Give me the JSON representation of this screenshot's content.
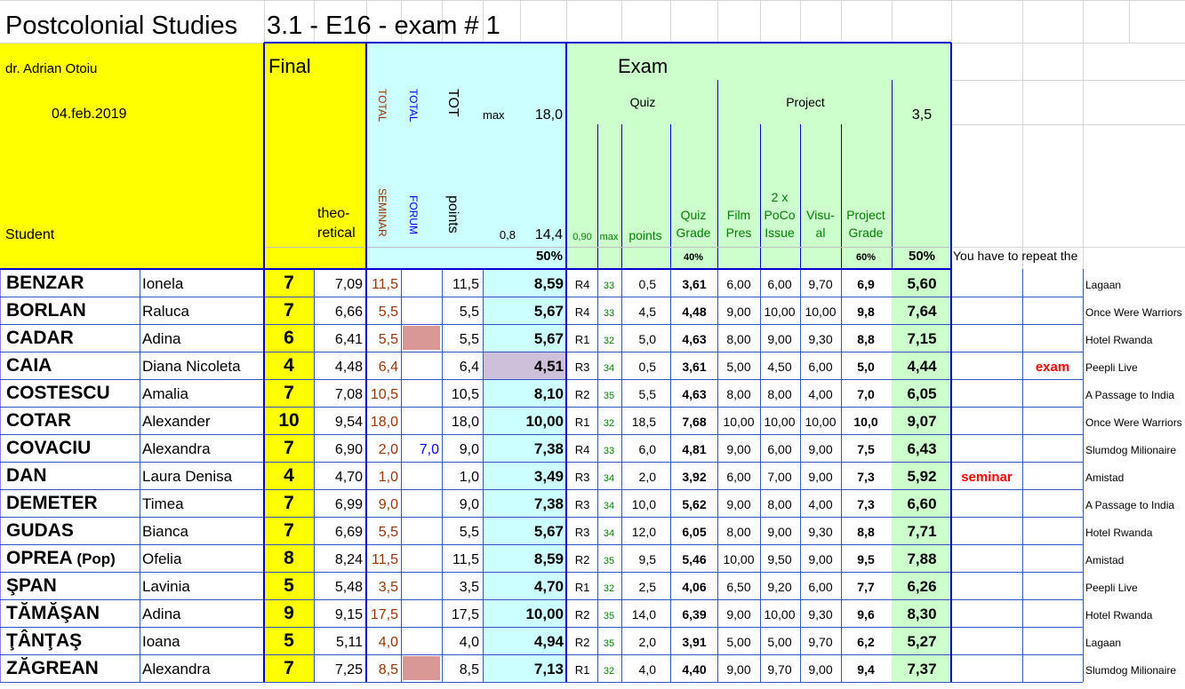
{
  "sheet": {
    "title": "Postcolonial Studies",
    "course": "3.1 - E16 - exam # 1",
    "teacher": "dr. Adrian Otoiu",
    "date": "04.feb.2019",
    "student_label": "Student",
    "final_label": "Final",
    "theoretical_label_1": "theo-",
    "theoretical_label_2": "retical",
    "total_seminar_top": "TOTAL",
    "total_seminar_bottom": "SEMINAR",
    "total_forum_top": "TOTAL",
    "total_forum_bottom": "FORUM",
    "tot_points_top": "TOT",
    "tot_points_bottom": "points",
    "max_label": "max",
    "max_value": "18,0",
    "factor": "0,8",
    "pass_points": "14,4",
    "points_weight": "50%",
    "exam_label": "Exam",
    "quiz_label": "Quiz",
    "project_label": "Project",
    "exam_score_top": "3,5",
    "quiz_factor": "0,90",
    "max_short": "max",
    "points_label": "points",
    "quiz_grade_1": "Quiz",
    "quiz_grade_2": "Grade",
    "quiz_weight": "40%",
    "film_1": "Film",
    "film_2": "Pres",
    "poco_0": "2 x",
    "poco_1": "PoCo",
    "poco_2": "Issue",
    "visual_1": "Visu-",
    "visual_2": "al",
    "project_grade_1": "Project",
    "project_grade_2": "Grade",
    "project_weight": "60%",
    "exam_weight": "50%",
    "repeat_note": "You have to repeat the"
  },
  "rows": [
    {
      "surname": "BENZAR",
      "name": "Ionela",
      "final": "7",
      "theo": "7,09",
      "seminar": "11,5",
      "forum": "",
      "forum_flag": false,
      "tot": "11,5",
      "points": "8,59",
      "points_flag": false,
      "quiz_id": "R4",
      "quiz_max": "33",
      "quiz_points": "0,5",
      "quiz_grade": "3,61",
      "film": "6,00",
      "poco": "6,00",
      "visual": "9,70",
      "project": "6,9",
      "exam": "5,60",
      "repeat": "",
      "movie": "Lagaan"
    },
    {
      "surname": "BORLAN",
      "name": "Raluca",
      "final": "7",
      "theo": "6,66",
      "seminar": "5,5",
      "forum": "",
      "forum_flag": false,
      "tot": "5,5",
      "points": "5,67",
      "points_flag": false,
      "quiz_id": "R4",
      "quiz_max": "33",
      "quiz_points": "4,5",
      "quiz_grade": "4,48",
      "film": "9,00",
      "poco": "10,00",
      "visual": "10,00",
      "project": "9,8",
      "exam": "7,64",
      "repeat": "",
      "movie": "Once Were Warriors"
    },
    {
      "surname": "CADAR",
      "name": "Adina",
      "final": "6",
      "theo": "6,41",
      "seminar": "5,5",
      "forum": "",
      "forum_flag": true,
      "tot": "5,5",
      "points": "5,67",
      "points_flag": false,
      "quiz_id": "R1",
      "quiz_max": "32",
      "quiz_points": "5,0",
      "quiz_grade": "4,63",
      "film": "8,00",
      "poco": "9,00",
      "visual": "9,30",
      "project": "8,8",
      "exam": "7,15",
      "repeat": "",
      "movie": "Hotel Rwanda"
    },
    {
      "surname": "CAIA",
      "name": "Diana Nicoleta",
      "final": "4",
      "theo": "4,48",
      "seminar": "6,4",
      "forum": "",
      "forum_flag": false,
      "tot": "6,4",
      "points": "4,51",
      "points_flag": true,
      "quiz_id": "R3",
      "quiz_max": "34",
      "quiz_points": "0,5",
      "quiz_grade": "3,61",
      "film": "5,00",
      "poco": "4,50",
      "visual": "6,00",
      "project": "5,0",
      "exam": "4,44",
      "repeat": "exam",
      "movie": "Peepli Live"
    },
    {
      "surname": "COSTESCU",
      "name": "Amalia",
      "final": "7",
      "theo": "7,08",
      "seminar": "10,5",
      "forum": "",
      "forum_flag": false,
      "tot": "10,5",
      "points": "8,10",
      "points_flag": false,
      "quiz_id": "R2",
      "quiz_max": "35",
      "quiz_points": "5,5",
      "quiz_grade": "4,63",
      "film": "8,00",
      "poco": "8,00",
      "visual": "4,00",
      "project": "7,0",
      "exam": "6,05",
      "repeat": "",
      "movie": "A Passage to India"
    },
    {
      "surname": "COTAR",
      "name": "Alexander",
      "final": "10",
      "theo": "9,54",
      "seminar": "18,0",
      "forum": "",
      "forum_flag": false,
      "tot": "18,0",
      "points": "10,00",
      "points_flag": false,
      "quiz_id": "R1",
      "quiz_max": "32",
      "quiz_points": "18,5",
      "quiz_grade": "7,68",
      "film": "10,00",
      "poco": "10,00",
      "visual": "10,00",
      "project": "10,0",
      "exam": "9,07",
      "repeat": "",
      "movie": "Once Were Warriors"
    },
    {
      "surname": "COVACIU",
      "name": "Alexandra",
      "final": "7",
      "theo": "6,90",
      "seminar": "2,0",
      "forum": "7,0",
      "forum_flag": false,
      "tot": "9,0",
      "points": "7,38",
      "points_flag": false,
      "quiz_id": "R4",
      "quiz_max": "33",
      "quiz_points": "6,0",
      "quiz_grade": "4,81",
      "film": "9,00",
      "poco": "6,00",
      "visual": "9,00",
      "project": "7,5",
      "exam": "6,43",
      "repeat": "",
      "movie": "Slumdog Milionaire"
    },
    {
      "surname": "DAN",
      "name": "Laura Denisa",
      "final": "4",
      "theo": "4,70",
      "seminar": "1,0",
      "forum": "",
      "forum_flag": false,
      "tot": "1,0",
      "points": "3,49",
      "points_flag": false,
      "quiz_id": "R3",
      "quiz_max": "34",
      "quiz_points": "2,0",
      "quiz_grade": "3,92",
      "film": "6,00",
      "poco": "7,00",
      "visual": "9,00",
      "project": "7,3",
      "exam": "5,92",
      "repeat": "seminar",
      "movie": "Amistad"
    },
    {
      "surname": "DEMETER",
      "name": "Timea",
      "final": "7",
      "theo": "6,99",
      "seminar": "9,0",
      "forum": "",
      "forum_flag": false,
      "tot": "9,0",
      "points": "7,38",
      "points_flag": false,
      "quiz_id": "R3",
      "quiz_max": "34",
      "quiz_points": "10,0",
      "quiz_grade": "5,62",
      "film": "9,00",
      "poco": "8,00",
      "visual": "4,00",
      "project": "7,3",
      "exam": "6,60",
      "repeat": "",
      "movie": "A Passage to India"
    },
    {
      "surname": "GUDAS",
      "name": "Bianca",
      "final": "7",
      "theo": "6,69",
      "seminar": "5,5",
      "forum": "",
      "forum_flag": false,
      "tot": "5,5",
      "points": "5,67",
      "points_flag": false,
      "quiz_id": "R3",
      "quiz_max": "34",
      "quiz_points": "12,0",
      "quiz_grade": "6,05",
      "film": "8,00",
      "poco": "9,00",
      "visual": "9,30",
      "project": "8,8",
      "exam": "7,71",
      "repeat": "",
      "movie": "Hotel Rwanda"
    },
    {
      "surname": "OPREA",
      "surname_extra": "(Pop)",
      "name": "Ofelia",
      "final": "8",
      "theo": "8,24",
      "seminar": "11,5",
      "forum": "",
      "forum_flag": false,
      "tot": "11,5",
      "points": "8,59",
      "points_flag": false,
      "quiz_id": "R2",
      "quiz_max": "35",
      "quiz_points": "9,5",
      "quiz_grade": "5,46",
      "film": "10,00",
      "poco": "9,50",
      "visual": "9,00",
      "project": "9,5",
      "exam": "7,88",
      "repeat": "",
      "movie": "Amistad"
    },
    {
      "surname": "ŞPAN",
      "name": "Lavinia",
      "final": "5",
      "theo": "5,48",
      "seminar": "3,5",
      "forum": "",
      "forum_flag": false,
      "tot": "3,5",
      "points": "4,70",
      "points_flag": false,
      "quiz_id": "R1",
      "quiz_max": "32",
      "quiz_points": "2,5",
      "quiz_grade": "4,06",
      "film": "6,50",
      "poco": "9,20",
      "visual": "6,00",
      "project": "7,7",
      "exam": "6,26",
      "repeat": "",
      "movie": "Peepli Live"
    },
    {
      "surname": "TĂMĂŞAN",
      "name": "Adina",
      "final": "9",
      "theo": "9,15",
      "seminar": "17,5",
      "forum": "",
      "forum_flag": false,
      "tot": "17,5",
      "points": "10,00",
      "points_flag": false,
      "quiz_id": "R2",
      "quiz_max": "35",
      "quiz_points": "14,0",
      "quiz_grade": "6,39",
      "film": "9,00",
      "poco": "10,00",
      "visual": "9,30",
      "project": "9,6",
      "exam": "8,30",
      "repeat": "",
      "movie": "Hotel Rwanda"
    },
    {
      "surname": "ŢÂNŢAŞ",
      "name": "Ioana",
      "final": "5",
      "theo": "5,11",
      "seminar": "4,0",
      "forum": "",
      "forum_flag": false,
      "tot": "4,0",
      "points": "4,94",
      "points_flag": false,
      "quiz_id": "R2",
      "quiz_max": "35",
      "quiz_points": "2,0",
      "quiz_grade": "3,91",
      "film": "5,00",
      "poco": "5,00",
      "visual": "9,70",
      "project": "6,2",
      "exam": "5,27",
      "repeat": "",
      "movie": "Lagaan"
    },
    {
      "surname": "ZĂGREAN",
      "name": "Alexandra",
      "final": "7",
      "theo": "7,25",
      "seminar": "8,5",
      "forum": "",
      "forum_flag": true,
      "tot": "8,5",
      "points": "7,13",
      "points_flag": false,
      "quiz_id": "R1",
      "quiz_max": "32",
      "quiz_points": "4,0",
      "quiz_grade": "4,40",
      "film": "9,00",
      "poco": "9,70",
      "visual": "9,00",
      "project": "9,4",
      "exam": "7,37",
      "repeat": "",
      "movie": "Slumdog Milionaire"
    }
  ],
  "colors": {
    "yellow": "#ffff00",
    "cyan": "#ccffff",
    "green": "#ccffcc",
    "pink": "#d99795",
    "lavender": "#ccc0da",
    "blue_border": "#0000cc",
    "seminar_text": "#993300",
    "forum_text": "#0000ff",
    "quiz_text": "#008000",
    "red": "#ff0000"
  }
}
